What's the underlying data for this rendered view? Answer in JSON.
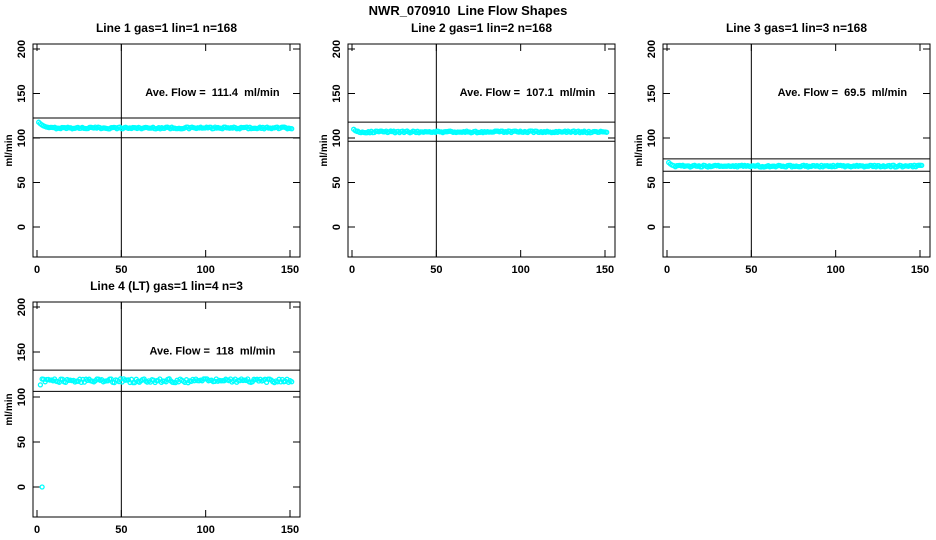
{
  "page_title": "NWR_070910  Line Flow Shapes",
  "colors": {
    "point": "#00ffff",
    "axis": "#000000",
    "background": "#ffffff",
    "text": "#000000"
  },
  "chart_data": [
    {
      "type": "scatter",
      "title": "Line 1 gas=1 lin=1 n=168",
      "annotation": "Ave. Flow =  111.4  ml/min",
      "ave_flow_ml_min": 111.4,
      "n_points": 168,
      "ylabel": "ml/min",
      "xticks": [
        0,
        50,
        100,
        150
      ],
      "yticks": [
        0,
        50,
        100,
        150,
        200
      ],
      "xlim": [
        -3,
        156
      ],
      "ylim": [
        -34,
        206
      ],
      "vline_x": 50,
      "hlines": [
        122.5,
        100.3
      ],
      "annotation_pos": [
        104,
        147
      ],
      "series": {
        "level": 111.3,
        "noise": 1.0,
        "flat_start_x": 8,
        "x_end": 151,
        "lead_points": [
          [
            1.0,
            117.8
          ],
          [
            1.9,
            116.2
          ],
          [
            2.8,
            114.8
          ],
          [
            3.7,
            113.8
          ],
          [
            4.6,
            113.0
          ],
          [
            5.5,
            112.4
          ],
          [
            6.4,
            112.0
          ],
          [
            7.2,
            111.7
          ]
        ],
        "outliers": []
      }
    },
    {
      "type": "scatter",
      "title": "Line 2 gas=1 lin=2 n=168",
      "annotation": "Ave. Flow =  107.1  ml/min",
      "ave_flow_ml_min": 107.1,
      "n_points": 168,
      "ylabel": "ml/min",
      "xticks": [
        0,
        50,
        100,
        150
      ],
      "yticks": [
        0,
        50,
        100,
        150,
        200
      ],
      "xlim": [
        -3,
        156
      ],
      "ylim": [
        -34,
        206
      ],
      "vline_x": 50,
      "hlines": [
        117.8,
        96.4
      ],
      "annotation_pos": [
        104,
        147
      ],
      "series": {
        "level": 106.9,
        "noise": 1.0,
        "flat_start_x": 3.5,
        "x_end": 151,
        "lead_points": [
          [
            1.0,
            109.8
          ],
          [
            2.0,
            108.2
          ],
          [
            3.0,
            107.3
          ]
        ],
        "outliers": []
      }
    },
    {
      "type": "scatter",
      "title": "Line 3 gas=1 lin=3 n=168",
      "annotation": "Ave. Flow =  69.5  ml/min",
      "ave_flow_ml_min": 69.5,
      "n_points": 168,
      "ylabel": "ml/min",
      "xticks": [
        0,
        50,
        100,
        150
      ],
      "yticks": [
        0,
        50,
        100,
        150,
        200
      ],
      "xlim": [
        -3,
        156
      ],
      "ylim": [
        -34,
        206
      ],
      "vline_x": 50,
      "hlines": [
        76.5,
        62.6
      ],
      "annotation_pos": [
        104,
        147
      ],
      "series": {
        "level": 68.4,
        "noise": 1.0,
        "flat_start_x": 5,
        "x_end": 151,
        "lead_points": [
          [
            1.0,
            72.5
          ],
          [
            2.0,
            70.8
          ],
          [
            3.0,
            69.6
          ],
          [
            4.0,
            69.0
          ]
        ],
        "outliers": []
      }
    },
    {
      "type": "scatter",
      "title": "Line 4 (LT) gas=1 lin=4 n=3",
      "annotation": "Ave. Flow =  118  ml/min",
      "ave_flow_ml_min": 118,
      "n_points": 3,
      "ylabel": "ml/min",
      "xticks": [
        0,
        50,
        100,
        150
      ],
      "yticks": [
        0,
        50,
        100,
        150,
        200
      ],
      "xlim": [
        -3,
        156
      ],
      "ylim": [
        -34,
        206
      ],
      "vline_x": 50,
      "hlines": [
        129.8,
        106.2
      ],
      "annotation_pos": [
        104,
        147
      ],
      "series": {
        "level": 118.0,
        "noise": 2.2,
        "flat_start_x": 3,
        "x_end": 151,
        "lead_points": [
          [
            2.0,
            113.5
          ]
        ],
        "outliers": [
          [
            3.0,
            0.0
          ]
        ]
      }
    }
  ]
}
